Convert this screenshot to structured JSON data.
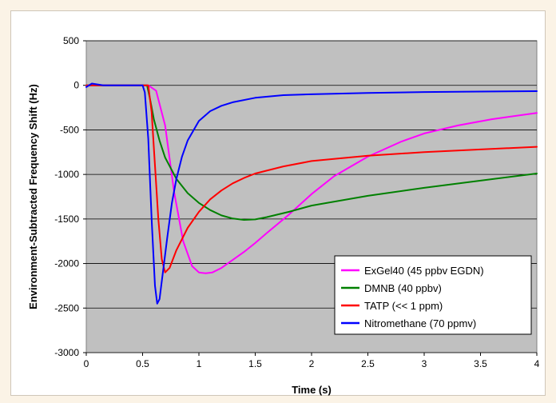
{
  "chart_data": {
    "type": "line",
    "title": "",
    "xlabel": "Time (s)",
    "ylabel": "Environment-Subtracted Frequency Shift (Hz)",
    "xlim": [
      0,
      4
    ],
    "ylim": [
      -3000,
      500
    ],
    "xticks": [
      "0",
      "0.5",
      "1",
      "1.5",
      "2",
      "2.5",
      "3",
      "3.5",
      "4"
    ],
    "yticks": [
      "500",
      "0",
      "-500",
      "-1000",
      "-1500",
      "-2000",
      "-2500",
      "-3000"
    ],
    "plot_background": "#c0c0c0",
    "grid": "horizontal",
    "legend_position": "bottom-right",
    "series": [
      {
        "name": "ExGel40 (45 ppbv EGDN)",
        "color": "#ff00ff",
        "x": [
          0,
          0.55,
          0.62,
          0.7,
          0.78,
          0.86,
          0.94,
          1.0,
          1.06,
          1.12,
          1.2,
          1.3,
          1.4,
          1.5,
          1.6,
          1.8,
          2.0,
          2.2,
          2.5,
          2.8,
          3.0,
          3.3,
          3.6,
          4.0
        ],
        "values": [
          0,
          0,
          -60,
          -450,
          -1200,
          -1750,
          -2030,
          -2100,
          -2110,
          -2100,
          -2050,
          -1960,
          -1870,
          -1770,
          -1660,
          -1450,
          -1220,
          -1020,
          -800,
          -630,
          -540,
          -450,
          -380,
          -310
        ]
      },
      {
        "name": "DMNB (40 ppbv)",
        "color": "#008000",
        "x": [
          0,
          0.54,
          0.57,
          0.6,
          0.65,
          0.7,
          0.8,
          0.9,
          1.0,
          1.1,
          1.2,
          1.3,
          1.4,
          1.5,
          1.6,
          1.8,
          2.0,
          2.5,
          3.0,
          3.5,
          4.0
        ],
        "values": [
          0,
          0,
          -180,
          -380,
          -620,
          -810,
          -1050,
          -1210,
          -1320,
          -1400,
          -1460,
          -1495,
          -1510,
          -1505,
          -1480,
          -1420,
          -1350,
          -1240,
          -1150,
          -1070,
          -990
        ]
      },
      {
        "name": "TATP (<< 1 ppm)",
        "color": "#ff0000",
        "x": [
          0,
          0.55,
          0.58,
          0.61,
          0.64,
          0.67,
          0.7,
          0.74,
          0.8,
          0.9,
          1.0,
          1.1,
          1.2,
          1.3,
          1.4,
          1.5,
          1.75,
          2.0,
          2.5,
          3.0,
          3.5,
          4.0
        ],
        "values": [
          0,
          0,
          -300,
          -900,
          -1500,
          -1950,
          -2100,
          -2050,
          -1850,
          -1600,
          -1420,
          -1280,
          -1180,
          -1100,
          -1040,
          -990,
          -910,
          -850,
          -790,
          -750,
          -720,
          -690
        ]
      },
      {
        "name": "Nitromethane (70 ppmv)",
        "color": "#0000ff",
        "x": [
          0,
          0.05,
          0.1,
          0.15,
          0.5,
          0.52,
          0.55,
          0.58,
          0.61,
          0.63,
          0.65,
          0.68,
          0.72,
          0.76,
          0.8,
          0.85,
          0.9,
          1.0,
          1.1,
          1.2,
          1.3,
          1.5,
          1.75,
          2.0,
          2.5,
          3.0,
          3.5,
          4.0
        ],
        "values": [
          -20,
          20,
          10,
          0,
          0,
          -80,
          -600,
          -1500,
          -2250,
          -2450,
          -2400,
          -2100,
          -1700,
          -1320,
          -1050,
          -800,
          -620,
          -400,
          -290,
          -230,
          -190,
          -140,
          -110,
          -100,
          -85,
          -75,
          -70,
          -65
        ]
      }
    ]
  }
}
